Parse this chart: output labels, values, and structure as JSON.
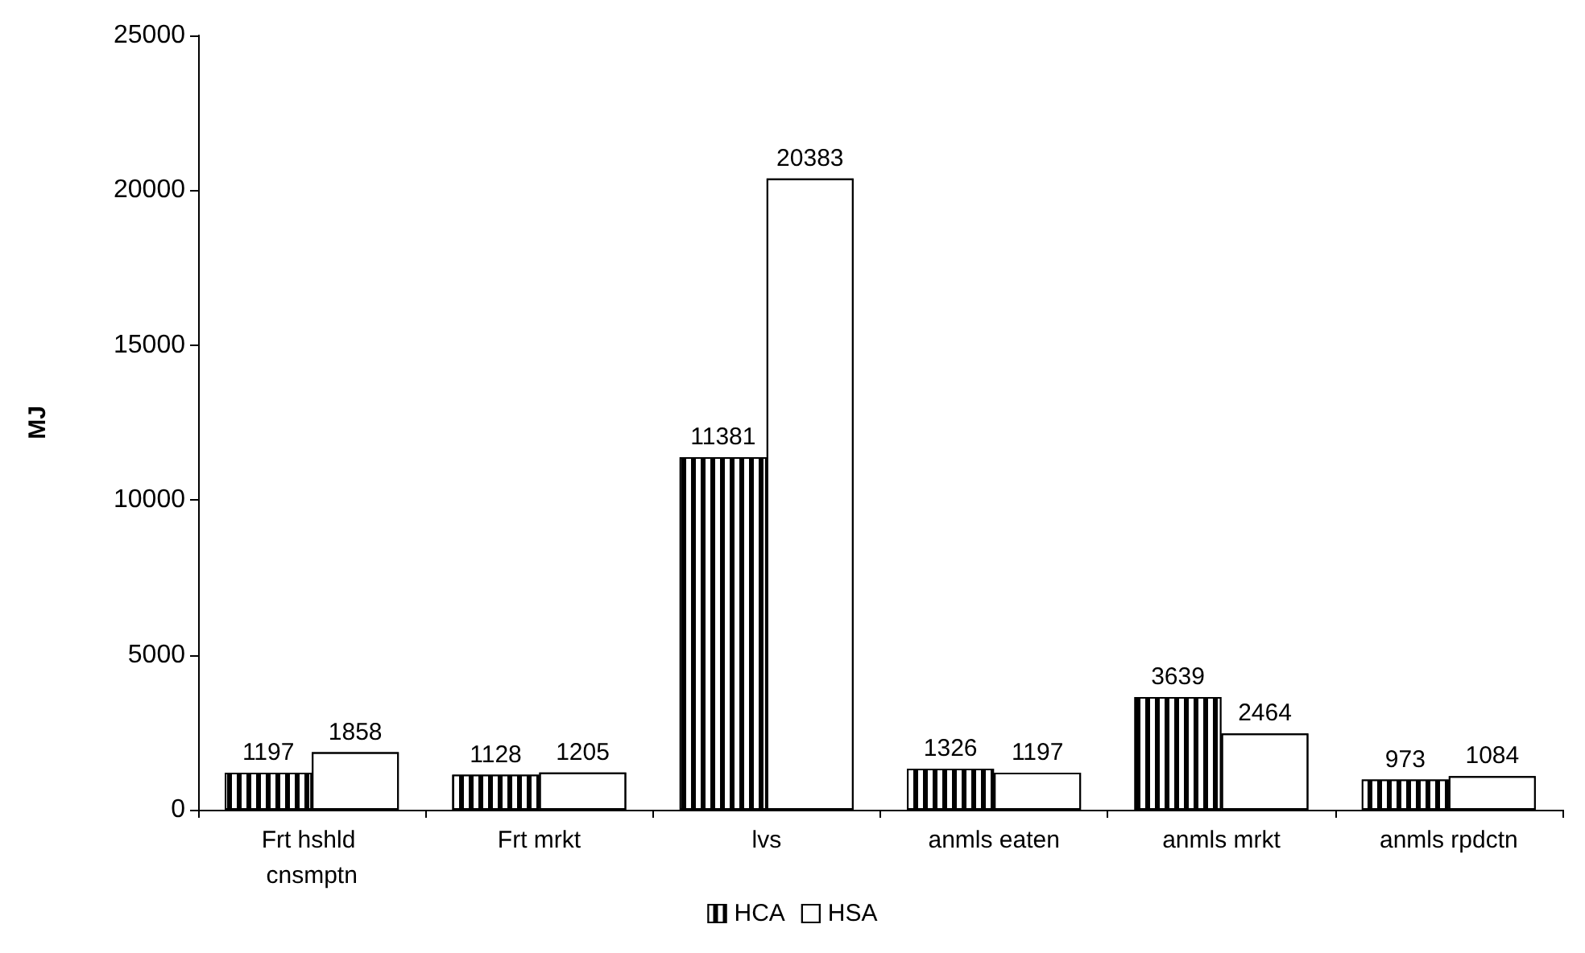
{
  "chart_data": {
    "type": "bar",
    "ylabel": "MJ",
    "categories": [
      "Frt hshld cnsmptn",
      "Frt mrkt",
      "lvs",
      "anmls eaten",
      "anmls mrkt",
      "anmls rpdctn"
    ],
    "series": [
      {
        "name": "HCA",
        "color": "#000000",
        "values": [
          1197,
          1128,
          11381,
          1326,
          3639,
          973
        ]
      },
      {
        "name": "HSA",
        "color": "#ffffff",
        "values": [
          1858,
          1205,
          20383,
          1197,
          2464,
          1084
        ]
      }
    ],
    "ylim": [
      0,
      25000
    ],
    "yticks": [
      0,
      5000,
      10000,
      15000,
      20000,
      25000
    ],
    "data_labels": true,
    "grid": false,
    "legend": "bottom"
  }
}
